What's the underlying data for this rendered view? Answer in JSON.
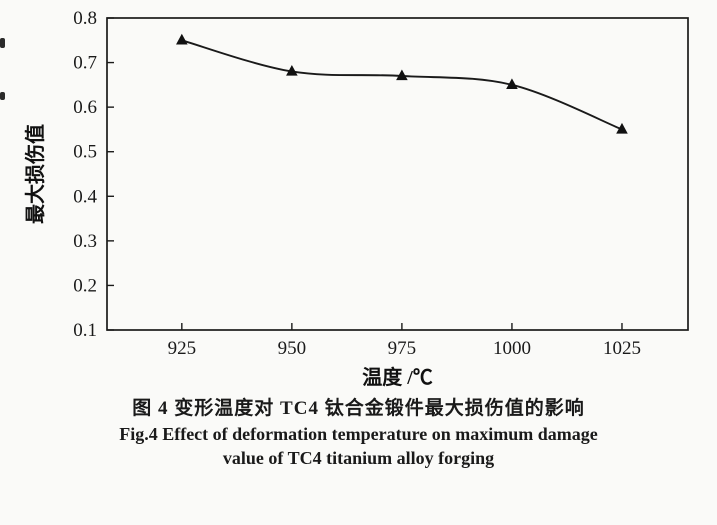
{
  "chart_data": {
    "type": "line",
    "x": [
      925,
      950,
      975,
      1000,
      1025
    ],
    "values": [
      0.75,
      0.68,
      0.67,
      0.65,
      0.55
    ],
    "series_name": "maximum damage value",
    "title": "",
    "xlabel": "温度 /℃",
    "ylabel": "最大损伤值",
    "xlim": [
      908,
      1040
    ],
    "ylim": [
      0.1,
      0.8
    ],
    "xticks": [
      925,
      950,
      975,
      1000,
      1025
    ],
    "yticks": [
      0.1,
      0.2,
      0.3,
      0.4,
      0.5,
      0.6,
      0.7,
      0.8
    ],
    "marker": "triangle-up",
    "line_color": "#1a1a1a",
    "marker_color": "#111111",
    "grid": false,
    "legend": "none"
  },
  "caption": {
    "line1": "图 4  变形温度对 TC4 钛合金锻件最大损伤值的影响",
    "line2": "Fig.4  Effect of deformation temperature on maximum damage",
    "line3": "value of TC4 titanium alloy forging"
  }
}
